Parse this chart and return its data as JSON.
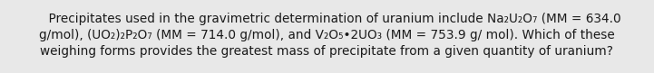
{
  "background_color": "#e8e8e8",
  "text_color": "#1a1a1a",
  "figsize": [
    7.21,
    0.81
  ],
  "dpi": 100,
  "fontsize": 9.8,
  "line1": "    Precipitates used in the gravimetric determination of uranium include Na₂U₂O₇ (MM = 634.0",
  "line2": "g/mol), (UO₂)₂P₂O₇ (MM = 714.0 g/mol), and V₂O₅•2UO₃ (MM = 753.9 g/ mol). Which of these",
  "line3": "weighing forms provides the greatest mass of precipitate from a given quantity of uranium?"
}
